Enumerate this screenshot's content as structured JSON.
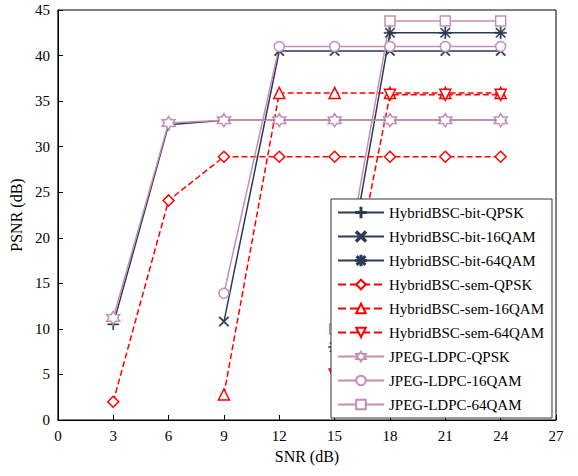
{
  "chart_data": {
    "type": "line",
    "x_label": "SNR (dB)",
    "y_label": "PSNR (dB)",
    "x": [
      3,
      6,
      9,
      12,
      15,
      18,
      21,
      24
    ],
    "xlim": [
      0,
      27
    ],
    "xticks": [
      0,
      3,
      6,
      9,
      12,
      15,
      18,
      21,
      24,
      27
    ],
    "ylim": [
      0,
      45
    ],
    "yticks": [
      0,
      5,
      10,
      15,
      20,
      25,
      30,
      35,
      40,
      45
    ],
    "grid": false,
    "legend": "lower right",
    "series": [
      {
        "name": "HybridBSC-bit-QPSK",
        "color": "#2b3a55",
        "marker": "plus",
        "line_style": "solid",
        "values": [
          10.5,
          32.4,
          32.9,
          32.9,
          32.9,
          32.9,
          32.9,
          32.9
        ]
      },
      {
        "name": "HybridBSC-bit-16QAM",
        "color": "#2b3a55",
        "marker": "x",
        "line_style": "solid",
        "values": [
          null,
          null,
          10.8,
          40.5,
          40.5,
          40.5,
          40.5,
          40.5
        ]
      },
      {
        "name": "HybridBSC-bit-64QAM",
        "color": "#2b3a55",
        "marker": "asterisk",
        "line_style": "solid",
        "values": [
          null,
          null,
          null,
          null,
          8,
          42.5,
          42.5,
          42.5
        ]
      },
      {
        "name": "HybridBSC-sem-QPSK",
        "color": "#ff0000",
        "marker": "diamond",
        "line_style": "dashed",
        "values": [
          2,
          24.1,
          28.9,
          28.9,
          28.9,
          28.9,
          28.9,
          28.9
        ]
      },
      {
        "name": "HybridBSC-sem-16QAM",
        "color": "#ff0000",
        "marker": "triangle",
        "line_style": "dashed",
        "values": [
          null,
          null,
          2.8,
          35.9,
          35.9,
          35.9,
          35.9,
          35.9
        ]
      },
      {
        "name": "HybridBSC-sem-64QAM",
        "color": "#ff0000",
        "marker": "triangle-down",
        "line_style": "dashed",
        "values": [
          null,
          null,
          null,
          null,
          5,
          35.7,
          35.7,
          35.7
        ]
      },
      {
        "name": "JPEG-LDPC-QPSK",
        "color": "#c58fb5",
        "marker": "hexagram",
        "line_style": "solid",
        "values": [
          11.2,
          32.6,
          32.9,
          32.9,
          32.9,
          32.9,
          32.9,
          32.9
        ]
      },
      {
        "name": "JPEG-LDPC-16QAM",
        "color": "#c58fb5",
        "marker": "circle",
        "line_style": "solid",
        "values": [
          null,
          null,
          13.9,
          41,
          41,
          41,
          41,
          41
        ]
      },
      {
        "name": "JPEG-LDPC-64QAM",
        "color": "#c58fb5",
        "marker": "square",
        "line_style": "solid",
        "values": [
          null,
          null,
          null,
          null,
          10,
          43.8,
          43.8,
          43.8
        ]
      }
    ]
  }
}
